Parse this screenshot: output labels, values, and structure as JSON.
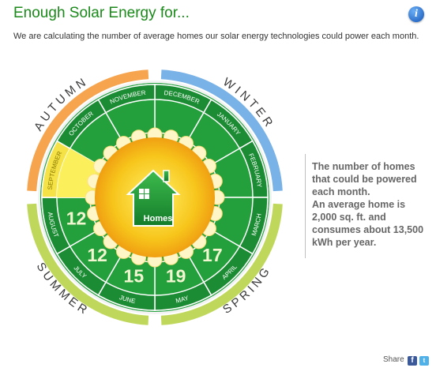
{
  "header": {
    "title": "Enough Solar Energy for...",
    "subtitle": "We are calculating the number of average homes our solar energy technologies could power each month.",
    "info_label": "i"
  },
  "wheel": {
    "seasons": [
      "AUTUMN",
      "WINTER",
      "SPRING",
      "SUMMER"
    ],
    "months": [
      "DECEMBER",
      "JANUARY",
      "FEBRUARY",
      "MARCH",
      "APRIL",
      "MAY",
      "JUNE",
      "JULY",
      "AUGUST",
      "SEPTEMBER",
      "OCTOBER",
      "NOVEMBER"
    ],
    "values": {
      "APRIL": "17",
      "MAY": "19",
      "JUNE": "15",
      "JULY": "12",
      "AUGUST": "12"
    },
    "selected_month": "SEPTEMBER",
    "center_label": "Homes"
  },
  "sidebar": {
    "line1": "The number of homes that could be powered each month.",
    "line2": "An average home is 2,000 sq. ft. and consumes about 13,500 kWh per year."
  },
  "share": {
    "label": "Share",
    "facebook": "f",
    "twitter": "t"
  },
  "colors": {
    "title": "#1a8a1a",
    "ring_green": "#23a03c",
    "selected_yellow": "#fbef5c",
    "autumn": "#f59a3a",
    "winter": "#6aaae3",
    "spring": "#b8d44a",
    "summer": "#b8d44a"
  }
}
